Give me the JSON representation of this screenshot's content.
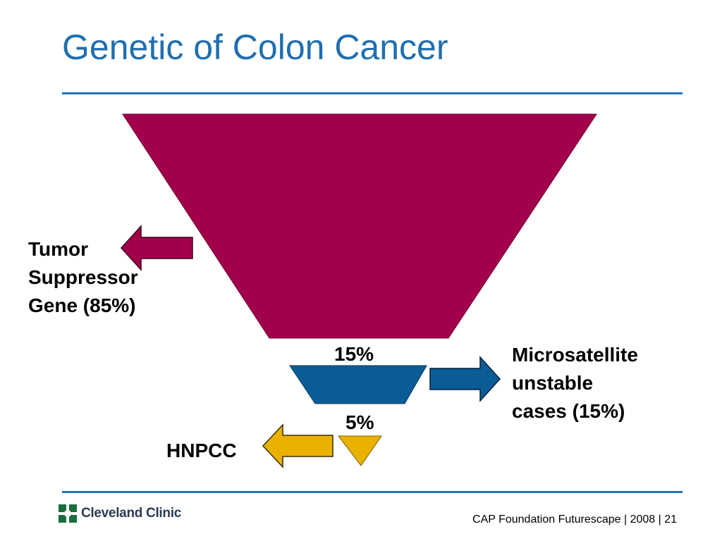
{
  "slide": {
    "title": "Genetic of Colon Cancer"
  },
  "diagram": {
    "tumor_label_lines": [
      "Tumor",
      "Suppressor",
      "Gene (85%)"
    ],
    "micro_label_lines": [
      "Microsatellite",
      "unstable",
      "cases (15%)"
    ],
    "hnpcc_label": "HNPCC",
    "pct_15": "15%",
    "pct_5": "5%"
  },
  "footer": {
    "logo_text": "Cleveland Clinic",
    "text": "CAP Foundation Futurescape | 2008 | 21"
  },
  "colors": {
    "title": "#1F6EB0",
    "rule": "#1F75B8",
    "tumor": "#A3004C",
    "micro": "#0B5C96",
    "hnpcc": "#E9B200",
    "logo": "#1B6E3C"
  }
}
